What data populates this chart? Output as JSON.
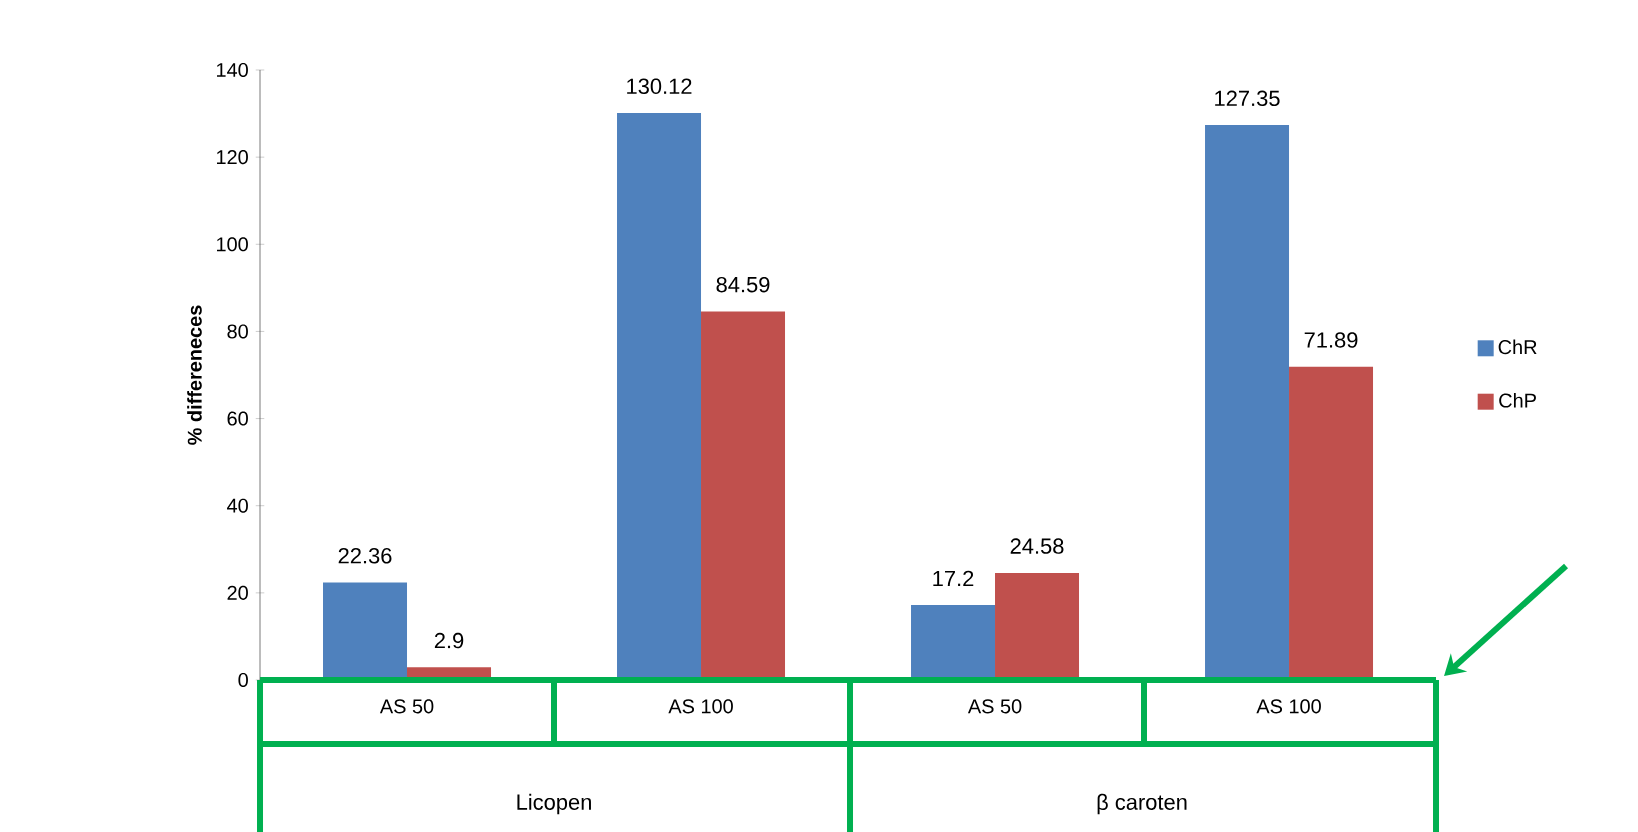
{
  "chart_data": {
    "type": "bar",
    "ylabel": "% differeneces",
    "categories": [
      "AS 50",
      "AS 100",
      "AS 50",
      "AS 100"
    ],
    "series": [
      {
        "name": "ChR",
        "color": "#4f81bd",
        "values": [
          22.36,
          130.12,
          17.2,
          127.35
        ]
      },
      {
        "name": "ChP",
        "color": "#c0504d",
        "values": [
          2.9,
          84.59,
          24.58,
          71.89
        ]
      }
    ],
    "ylim": [
      0,
      140
    ],
    "yticks": [
      0,
      20,
      40,
      60,
      80,
      100,
      120,
      140
    ],
    "data_labels": true,
    "legend": "right",
    "annotations": [
      "Licopen",
      "β caroten"
    ]
  }
}
